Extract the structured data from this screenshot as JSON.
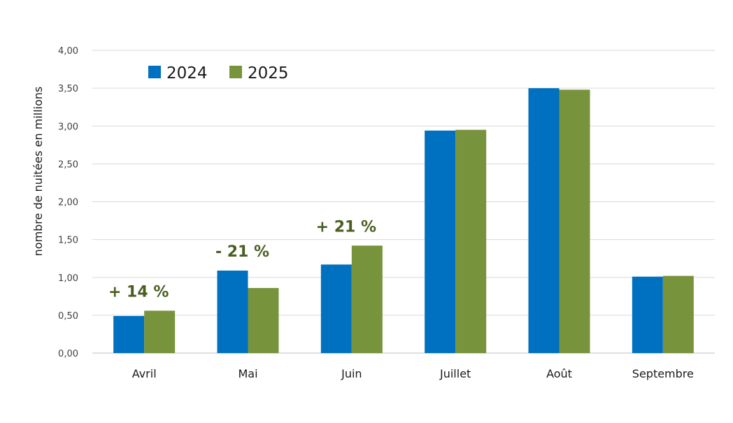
{
  "chart_data": {
    "type": "bar",
    "ylabel": "nombre de nuitées en millions",
    "xlabel": "",
    "ylim": [
      0,
      4
    ],
    "yticks": [
      "0,00",
      "0,50",
      "1,00",
      "1,50",
      "2,00",
      "2,50",
      "3,00",
      "3,50",
      "4,00"
    ],
    "grid": true,
    "legend_position": "top-left",
    "categories": [
      "Avril",
      "Mai",
      "Juin",
      "Juillet",
      "Août",
      "Septembre"
    ],
    "series": [
      {
        "name": "2024",
        "color": "#0070c0",
        "values": [
          0.49,
          1.09,
          1.17,
          2.94,
          3.5,
          1.01
        ]
      },
      {
        "name": "2025",
        "color": "#77933c",
        "values": [
          0.56,
          0.86,
          1.42,
          2.95,
          3.48,
          1.02
        ]
      }
    ],
    "annotations": [
      {
        "category": "Avril",
        "text": "+ 14 %"
      },
      {
        "category": "Mai",
        "text": "- 21 %"
      },
      {
        "category": "Juin",
        "text": "+ 21 %"
      }
    ]
  }
}
